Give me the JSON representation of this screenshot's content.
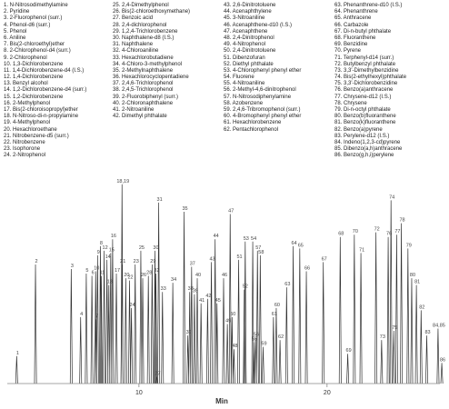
{
  "legend_columns": [
    [
      "1. N-Nitrosodimethylamine",
      "2. Pyridine",
      "3. 2-Fluorophenol (surr.)",
      "4. Phenol-d6 (surr.)",
      "5. Phenol",
      "6. Aniline",
      "7. Bis(2-chloroethyl)ether",
      "8. 2-Chlorophenol-d4 (surr.)",
      "9. 2-Chlorophenol",
      "10. 1,3-Dichlorobenzene",
      "11. 1,4-Dichlorobenzene-d4 (I.S.)",
      "12. 1,4-Dichlorobenzene",
      "13. Benzyl alcohol",
      "14. 1,2-Dichlorobenzene-d4 (surr.)",
      "15. 1,2-Dichlorobenzene",
      "16. 2-Methylphenol",
      "17. Bis(2-chloroisopropyl)ether",
      "18. N-Nitroso-di-n-propylamine",
      "19. 4-Methylphenol",
      "20. Hexachloroethane",
      "21. Nitrobenzene-d5 (surr.)",
      "22. Nitrobenzene",
      "23. Isophorone",
      "24. 2-Nitrophenol"
    ],
    [
      "25. 2,4-Dimethylphenol",
      "26. Bis(2-chloroethoxymethane)",
      "27. Benzoic acid",
      "28. 2,4-dichlorophenol",
      "29. 1,2,4-Trichlorobenzene",
      "30. Naphthalene-d8 (I.S.)",
      "31. Naphthalene",
      "32. 4-Chloroaniline",
      "33. Hexachlorobutadiene",
      "34. 4-Chloro-3-methylphenol",
      "35. 2-Methylnaphthalene",
      "36. Hexachlorocyclopentadiene",
      "37. 2,4,6-Trichlorophenol",
      "38. 2,4,5-Trichlorophenol",
      "39. 2-Fluorobiphenyl (surr.)",
      "40. 2-Chloronaphthalene",
      "41. 2-Nitroaniline",
      "42. Dimethyl phthalate"
    ],
    [
      "43. 2,6-Dinitrotoluene",
      "44. Acenaphthylene",
      "45. 3-Nitroaniline",
      "46. Acenaphthene-d10 (I.S.)",
      "47. Acenaphthene",
      "48. 2,4-Dinitrophenol",
      "49. 4-Nitrophenol",
      "50. 2,4-Dinitrotoluene",
      "51. Dibenzofuran",
      "52. Diethyl phthalate",
      "53. 4-Chlorophenyl phenyl ether",
      "54. Fluorene",
      "55. 4-Nitroaniline",
      "56. 2-Methyl-4,6-dinitrophenol",
      "57. N-Nitrosodiphenylamine",
      "58. Azobenzene",
      "59. 2,4,6-Tribromophenol (surr.)",
      "60. 4-Bromophenyl phenyl ether",
      "61. Hexachlorobenzene",
      "62. Pentachlorophenol"
    ],
    [
      "63. Phenanthrene-d10 (I.S.)",
      "64. Phenanthrene",
      "65. Anthracene",
      "66. Carbazole",
      "67. Di-n-butyl phthalate",
      "68. Fluoranthene",
      "69. Benzidine",
      "70. Pyrene",
      "71. Terphenyl-d14 (surr.)",
      "72. Butylbenzyl phthalate",
      "73. 3,3'-Dimethylbenzidine",
      "74. Bis(2-ethylhexyl)phthalate",
      "75. 3,3'-Dichlorobenzidine",
      "76. Benzo(a)anthracene",
      "77. Chrysene-d12 (I.S.)",
      "78. Chrysene",
      "79. Di-n-octyl phthalate",
      "80. Benzo(b)fluoranthene",
      "81. Benzo(k)fluoranthene",
      "82. Benzo(a)pyrene",
      "83. Perylene-d12 (I.S.)",
      "84. Indeno(1,2,3-cd)pyrene",
      "85. Dibenzo(a,h)anthracene",
      "86. Benzo(g,h,i)perylene"
    ]
  ],
  "chart_data": {
    "type": "line",
    "title": "",
    "xlabel": "Min",
    "ylabel": "",
    "xlim": [
      3,
      26
    ],
    "ylim": [
      0,
      100
    ],
    "xticks": [
      10,
      20
    ],
    "grid": false,
    "line_color": "#333333",
    "label_color": "#444444",
    "peaks": [
      {
        "label": "1",
        "x": 3.5,
        "y": 12
      },
      {
        "label": "2",
        "x": 4.5,
        "y": 52
      },
      {
        "label": "3",
        "x": 6.4,
        "y": 50
      },
      {
        "label": "4",
        "x": 6.9,
        "y": 29
      },
      {
        "label": "5",
        "x": 7.2,
        "y": 48
      },
      {
        "label": "6",
        "x": 7.5,
        "y": 47
      },
      {
        "label": "7",
        "x": 7.7,
        "y": 28
      },
      {
        "label": "8",
        "x": 7.95,
        "y": 60
      },
      {
        "label": "9",
        "x": 7.8,
        "y": 56
      },
      {
        "label": "10",
        "x": 7.7,
        "y": 49
      },
      {
        "label": "11",
        "x": 8.0,
        "y": 47
      },
      {
        "label": "12",
        "x": 8.15,
        "y": 58
      },
      {
        "label": "13",
        "x": 8.4,
        "y": 43
      },
      {
        "label": "14",
        "x": 8.3,
        "y": 54
      },
      {
        "label": "15",
        "x": 8.5,
        "y": 57
      },
      {
        "label": "16",
        "x": 8.6,
        "y": 63
      },
      {
        "label": "17",
        "x": 8.8,
        "y": 48
      },
      {
        "label": "18,19",
        "x": 9.1,
        "y": 87
      },
      {
        "label": "20",
        "x": 9.3,
        "y": 46
      },
      {
        "label": "21",
        "x": 9.1,
        "y": 52
      },
      {
        "label": "22",
        "x": 9.5,
        "y": 45
      },
      {
        "label": "23",
        "x": 9.8,
        "y": 52
      },
      {
        "label": "24",
        "x": 9.6,
        "y": 33
      },
      {
        "label": "25",
        "x": 10.1,
        "y": 58
      },
      {
        "label": "26",
        "x": 10.2,
        "y": 46
      },
      {
        "label": "27",
        "x": 10.95,
        "y": 3
      },
      {
        "label": "28",
        "x": 10.5,
        "y": 47
      },
      {
        "label": "29",
        "x": 10.7,
        "y": 52
      },
      {
        "label": "30",
        "x": 10.85,
        "y": 58
      },
      {
        "label": "31",
        "x": 11.05,
        "y": 79
      },
      {
        "label": "32",
        "x": 10.9,
        "y": 48
      },
      {
        "label": "33",
        "x": 11.25,
        "y": 40
      },
      {
        "label": "34",
        "x": 11.8,
        "y": 44
      },
      {
        "label": "35",
        "x": 12.4,
        "y": 75
      },
      {
        "label": "36",
        "x": 12.6,
        "y": 21
      },
      {
        "label": "37",
        "x": 12.8,
        "y": 51
      },
      {
        "label": "38",
        "x": 12.7,
        "y": 40
      },
      {
        "label": "39",
        "x": 12.95,
        "y": 39
      },
      {
        "label": "40",
        "x": 13.1,
        "y": 46
      },
      {
        "label": "41",
        "x": 13.3,
        "y": 35
      },
      {
        "label": "42",
        "x": 13.65,
        "y": 37
      },
      {
        "label": "43",
        "x": 13.85,
        "y": 53
      },
      {
        "label": "44",
        "x": 14.05,
        "y": 63
      },
      {
        "label": "45",
        "x": 14.15,
        "y": 35
      },
      {
        "label": "46",
        "x": 14.5,
        "y": 46
      },
      {
        "label": "47",
        "x": 14.85,
        "y": 74
      },
      {
        "label": "48",
        "x": 15.05,
        "y": 15
      },
      {
        "label": "49",
        "x": 14.7,
        "y": 26
      },
      {
        "label": "50",
        "x": 14.95,
        "y": 29
      },
      {
        "label": "51",
        "x": 15.3,
        "y": 54
      },
      {
        "label": "52",
        "x": 15.6,
        "y": 41
      },
      {
        "label": "53",
        "x": 15.65,
        "y": 62
      },
      {
        "label": "54",
        "x": 16.05,
        "y": 62
      },
      {
        "label": "55",
        "x": 16.1,
        "y": 18
      },
      {
        "label": "56",
        "x": 16.2,
        "y": 20
      },
      {
        "label": "57",
        "x": 16.3,
        "y": 58
      },
      {
        "label": "58",
        "x": 16.45,
        "y": 56
      },
      {
        "label": "59",
        "x": 16.6,
        "y": 16
      },
      {
        "label": "60",
        "x": 17.3,
        "y": 33
      },
      {
        "label": "61",
        "x": 17.15,
        "y": 29
      },
      {
        "label": "62",
        "x": 17.5,
        "y": 19
      },
      {
        "label": "63",
        "x": 17.85,
        "y": 42
      },
      {
        "label": "64",
        "x": 18.2,
        "y": 60
      },
      {
        "label": "65",
        "x": 18.55,
        "y": 59
      },
      {
        "label": "66",
        "x": 18.9,
        "y": 49
      },
      {
        "label": "67",
        "x": 19.8,
        "y": 53
      },
      {
        "label": "68",
        "x": 20.7,
        "y": 64
      },
      {
        "label": "69",
        "x": 21.1,
        "y": 13
      },
      {
        "label": "70",
        "x": 21.45,
        "y": 65
      },
      {
        "label": "71",
        "x": 21.8,
        "y": 57
      },
      {
        "label": "72",
        "x": 22.6,
        "y": 66
      },
      {
        "label": "73",
        "x": 22.9,
        "y": 19
      },
      {
        "label": "74",
        "x": 23.4,
        "y": 80
      },
      {
        "label": "75",
        "x": 23.55,
        "y": 23
      },
      {
        "label": "76",
        "x": 23.25,
        "y": 64
      },
      {
        "label": "77",
        "x": 23.7,
        "y": 65
      },
      {
        "label": "78",
        "x": 23.95,
        "y": 70
      },
      {
        "label": "79",
        "x": 24.3,
        "y": 59
      },
      {
        "label": "80",
        "x": 24.5,
        "y": 46
      },
      {
        "label": "81",
        "x": 24.75,
        "y": 43
      },
      {
        "label": "82",
        "x": 25.0,
        "y": 32
      },
      {
        "label": "83",
        "x": 25.3,
        "y": 21
      },
      {
        "label": "84,85",
        "x": 25.9,
        "y": 24
      },
      {
        "label": "86",
        "x": 26.1,
        "y": 9
      }
    ]
  }
}
